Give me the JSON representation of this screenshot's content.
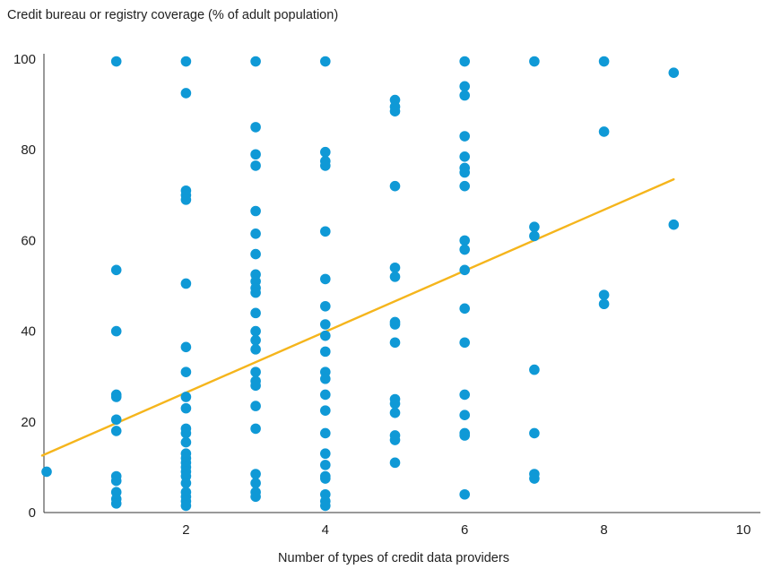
{
  "chart_data": {
    "type": "scatter",
    "title": "",
    "ylabel": "Credit bureau or registry coverage (% of adult population)",
    "xlabel": "Number of types of credit data providers",
    "xlim": [
      0,
      10
    ],
    "ylim": [
      0,
      100
    ],
    "xticks": [
      2,
      4,
      6,
      8,
      10
    ],
    "yticks": [
      0,
      20,
      40,
      60,
      80,
      100
    ],
    "grid": false,
    "colors": {
      "points": "#0f99d6",
      "trend": "#f5b51c",
      "axis": "#333333"
    },
    "points": [
      [
        0,
        9.0
      ],
      [
        1,
        99.5
      ],
      [
        1,
        53.5
      ],
      [
        1,
        40.0
      ],
      [
        1,
        26.0
      ],
      [
        1,
        25.5
      ],
      [
        1,
        20.5
      ],
      [
        1,
        18.0
      ],
      [
        1,
        8.0
      ],
      [
        1,
        7.0
      ],
      [
        1,
        4.5
      ],
      [
        1,
        3.0
      ],
      [
        1,
        2.0
      ],
      [
        2,
        99.5
      ],
      [
        2,
        92.5
      ],
      [
        2,
        71.0
      ],
      [
        2,
        70.0
      ],
      [
        2,
        69.0
      ],
      [
        2,
        50.5
      ],
      [
        2,
        36.5
      ],
      [
        2,
        31.0
      ],
      [
        2,
        25.5
      ],
      [
        2,
        23.0
      ],
      [
        2,
        18.5
      ],
      [
        2,
        17.5
      ],
      [
        2,
        15.5
      ],
      [
        2,
        13.0
      ],
      [
        2,
        12.0
      ],
      [
        2,
        11.0
      ],
      [
        2,
        10.0
      ],
      [
        2,
        9.0
      ],
      [
        2,
        8.0
      ],
      [
        2,
        6.5
      ],
      [
        2,
        4.5
      ],
      [
        2,
        3.5
      ],
      [
        2,
        2.5
      ],
      [
        2,
        1.5
      ],
      [
        3,
        99.5
      ],
      [
        3,
        85.0
      ],
      [
        3,
        79.0
      ],
      [
        3,
        76.5
      ],
      [
        3,
        66.5
      ],
      [
        3,
        61.5
      ],
      [
        3,
        57.0
      ],
      [
        3,
        52.5
      ],
      [
        3,
        51.0
      ],
      [
        3,
        49.5
      ],
      [
        3,
        48.5
      ],
      [
        3,
        44.0
      ],
      [
        3,
        40.0
      ],
      [
        3,
        38.0
      ],
      [
        3,
        36.0
      ],
      [
        3,
        31.0
      ],
      [
        3,
        29.0
      ],
      [
        3,
        28.0
      ],
      [
        3,
        23.5
      ],
      [
        3,
        18.5
      ],
      [
        3,
        8.5
      ],
      [
        3,
        6.5
      ],
      [
        3,
        4.5
      ],
      [
        3,
        3.5
      ],
      [
        4,
        99.5
      ],
      [
        4,
        79.5
      ],
      [
        4,
        77.5
      ],
      [
        4,
        76.5
      ],
      [
        4,
        62.0
      ],
      [
        4,
        51.5
      ],
      [
        4,
        45.5
      ],
      [
        4,
        41.5
      ],
      [
        4,
        39.0
      ],
      [
        4,
        35.5
      ],
      [
        4,
        31.0
      ],
      [
        4,
        29.5
      ],
      [
        4,
        26.0
      ],
      [
        4,
        22.5
      ],
      [
        4,
        17.5
      ],
      [
        4,
        13.0
      ],
      [
        4,
        10.5
      ],
      [
        4,
        8.0
      ],
      [
        4,
        7.5
      ],
      [
        4,
        4.0
      ],
      [
        4,
        2.5
      ],
      [
        4,
        1.5
      ],
      [
        5,
        91.0
      ],
      [
        5,
        89.5
      ],
      [
        5,
        88.5
      ],
      [
        5,
        72.0
      ],
      [
        5,
        54.0
      ],
      [
        5,
        52.0
      ],
      [
        5,
        42.0
      ],
      [
        5,
        41.5
      ],
      [
        5,
        37.5
      ],
      [
        5,
        25.0
      ],
      [
        5,
        24.0
      ],
      [
        5,
        22.0
      ],
      [
        5,
        17.0
      ],
      [
        5,
        16.0
      ],
      [
        5,
        11.0
      ],
      [
        6,
        99.5
      ],
      [
        6,
        94.0
      ],
      [
        6,
        92.0
      ],
      [
        6,
        83.0
      ],
      [
        6,
        78.5
      ],
      [
        6,
        76.0
      ],
      [
        6,
        75.0
      ],
      [
        6,
        72.0
      ],
      [
        6,
        60.0
      ],
      [
        6,
        58.0
      ],
      [
        6,
        53.5
      ],
      [
        6,
        45.0
      ],
      [
        6,
        37.5
      ],
      [
        6,
        26.0
      ],
      [
        6,
        21.5
      ],
      [
        6,
        17.5
      ],
      [
        6,
        17.0
      ],
      [
        6,
        4.0
      ],
      [
        7,
        99.5
      ],
      [
        7,
        63.0
      ],
      [
        7,
        61.0
      ],
      [
        7,
        31.5
      ],
      [
        7,
        17.5
      ],
      [
        7,
        8.5
      ],
      [
        7,
        7.5
      ],
      [
        8,
        99.5
      ],
      [
        8,
        84.0
      ],
      [
        8,
        48.0
      ],
      [
        8,
        46.0
      ],
      [
        9,
        97.0
      ],
      [
        9,
        63.5
      ]
    ],
    "trend_line": {
      "x": [
        0,
        9
      ],
      "y": [
        13.0,
        73.5
      ]
    }
  }
}
